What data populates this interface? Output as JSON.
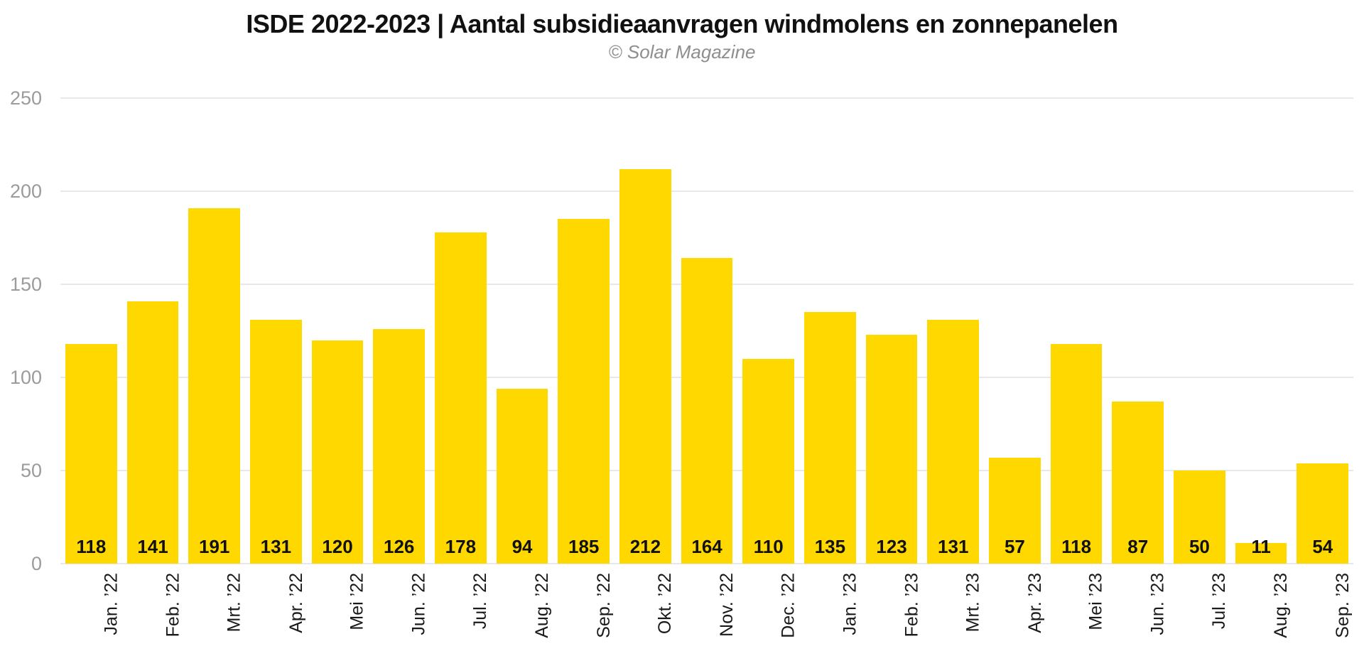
{
  "chart_data": {
    "type": "bar",
    "title": "ISDE 2022-2023 | Aantal subsidieaanvragen windmolens en zonnepanelen",
    "subtitle": "© Solar Magazine",
    "categories": [
      "Jan. ’22",
      "Feb. ’22",
      "Mrt. ’22",
      "Apr. ’22",
      "Mei ’22",
      "Jun. ’22",
      "Jul. ’22",
      "Aug. ’22",
      "Sep. ’22",
      "Okt. ’22",
      "Nov. ’22",
      "Dec. ’22",
      "Jan. ’23",
      "Feb. ’23",
      "Mrt. ’23",
      "Apr. ’23",
      "Mei ’23",
      "Jun. ’23",
      "Jul. ’23",
      "Aug. ’23",
      "Sep. ’23"
    ],
    "values": [
      118,
      141,
      191,
      131,
      120,
      126,
      178,
      94,
      185,
      212,
      164,
      110,
      135,
      123,
      131,
      57,
      118,
      87,
      50,
      11,
      54
    ],
    "xlabel": "",
    "ylabel": "",
    "ylim": [
      0,
      250
    ],
    "yticks": [
      0,
      50,
      100,
      150,
      200,
      250
    ],
    "grid": "horizontal",
    "legend_position": "none",
    "value_label_position": "inside-bottom",
    "x_tick_rotation_deg": -90,
    "colors": {
      "bar": "#ffd800",
      "gridline": "#e8e8e8",
      "y_tick_label": "#9b9b9b",
      "x_tick_label": "#1a1a1a",
      "value_label": "#111111",
      "title": "#111111",
      "subtitle": "#8e8e8e",
      "background": "#ffffff"
    }
  }
}
